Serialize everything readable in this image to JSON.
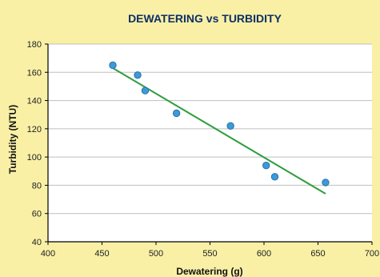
{
  "chart_data": {
    "type": "scatter",
    "title": "DEWATERING vs TURBIDITY",
    "xlabel": "Dewatering (g)",
    "ylabel": "Turbidity (NTU)",
    "xlim": [
      400,
      700
    ],
    "ylim": [
      40,
      180
    ],
    "xticks": [
      400,
      450,
      500,
      550,
      600,
      650,
      700
    ],
    "yticks": [
      40,
      60,
      80,
      100,
      120,
      140,
      160,
      180
    ],
    "grid": "horizontal",
    "series": [
      {
        "points": [
          {
            "x": 460,
            "y": 165
          },
          {
            "x": 483,
            "y": 158
          },
          {
            "x": 490,
            "y": 147
          },
          {
            "x": 519,
            "y": 131
          },
          {
            "x": 569,
            "y": 122
          },
          {
            "x": 602,
            "y": 94
          },
          {
            "x": 610,
            "y": 86
          },
          {
            "x": 657,
            "y": 82
          }
        ]
      }
    ],
    "trendline": {
      "x": [
        460,
        657
      ],
      "y": [
        163,
        74
      ],
      "color": "#2e9e3e"
    },
    "colors": {
      "background": "#f9f0a6",
      "plot_area": "#ffffff",
      "marker": "#3a9bd9",
      "marker_edge": "#2a6fa8",
      "grid": "#bfbfbf"
    }
  }
}
